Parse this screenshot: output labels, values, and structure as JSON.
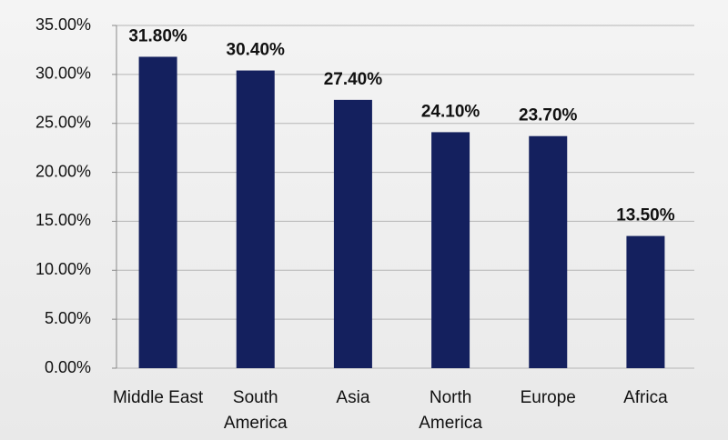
{
  "chart_data": {
    "type": "bar",
    "categories": [
      "Middle East",
      "South America",
      "Asia",
      "North America",
      "Europe",
      "Africa"
    ],
    "values": [
      31.8,
      30.4,
      27.4,
      24.1,
      23.7,
      13.5
    ],
    "value_labels": [
      "31.80%",
      "30.40%",
      "27.40%",
      "24.10%",
      "23.70%",
      "13.50%"
    ],
    "color": "#14205e",
    "ylim": [
      0,
      35
    ],
    "yticks": [
      {
        "value": 0,
        "label": "0.00%"
      },
      {
        "value": 5,
        "label": "5.00%"
      },
      {
        "value": 10,
        "label": "10.00%"
      },
      {
        "value": 15,
        "label": "15.00%"
      },
      {
        "value": 20,
        "label": "20.00%"
      },
      {
        "value": 25,
        "label": "25.00%"
      },
      {
        "value": 30,
        "label": "30.00%"
      },
      {
        "value": 35,
        "label": "35.00%"
      }
    ],
    "grid": true
  }
}
